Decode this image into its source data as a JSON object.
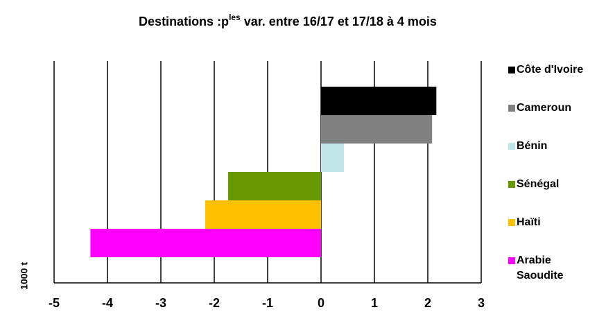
{
  "chart_data": {
    "type": "hbar",
    "title": {
      "text": "Destinations :p",
      "superscript": "les",
      "rest": " var. entre 16/17 et 17/18 à 4 mois"
    },
    "y_label": "1000 t",
    "series": [
      {
        "name": "Côte d'Ivoire",
        "color": "#000000",
        "values": [
          2.16
        ]
      },
      {
        "name": "Cameroun",
        "color": "#808080",
        "values": [
          2.08
        ]
      },
      {
        "name": "Bénin",
        "color": "#c0e4e8",
        "values": [
          0.43
        ]
      },
      {
        "name": "Sénégal",
        "color": "#669900",
        "values": [
          -1.74
        ]
      },
      {
        "name": "Haïti",
        "color": "#ffc000",
        "values": [
          -2.17
        ]
      },
      {
        "name": "Arabie Saoudite",
        "color": "#ff00ff",
        "values": [
          -4.32
        ]
      }
    ],
    "xlim": [
      -5,
      3
    ],
    "xticks": [
      -5,
      -4,
      -3,
      -2,
      -1,
      0,
      1,
      2,
      3
    ],
    "grid": true,
    "legend": "right"
  }
}
